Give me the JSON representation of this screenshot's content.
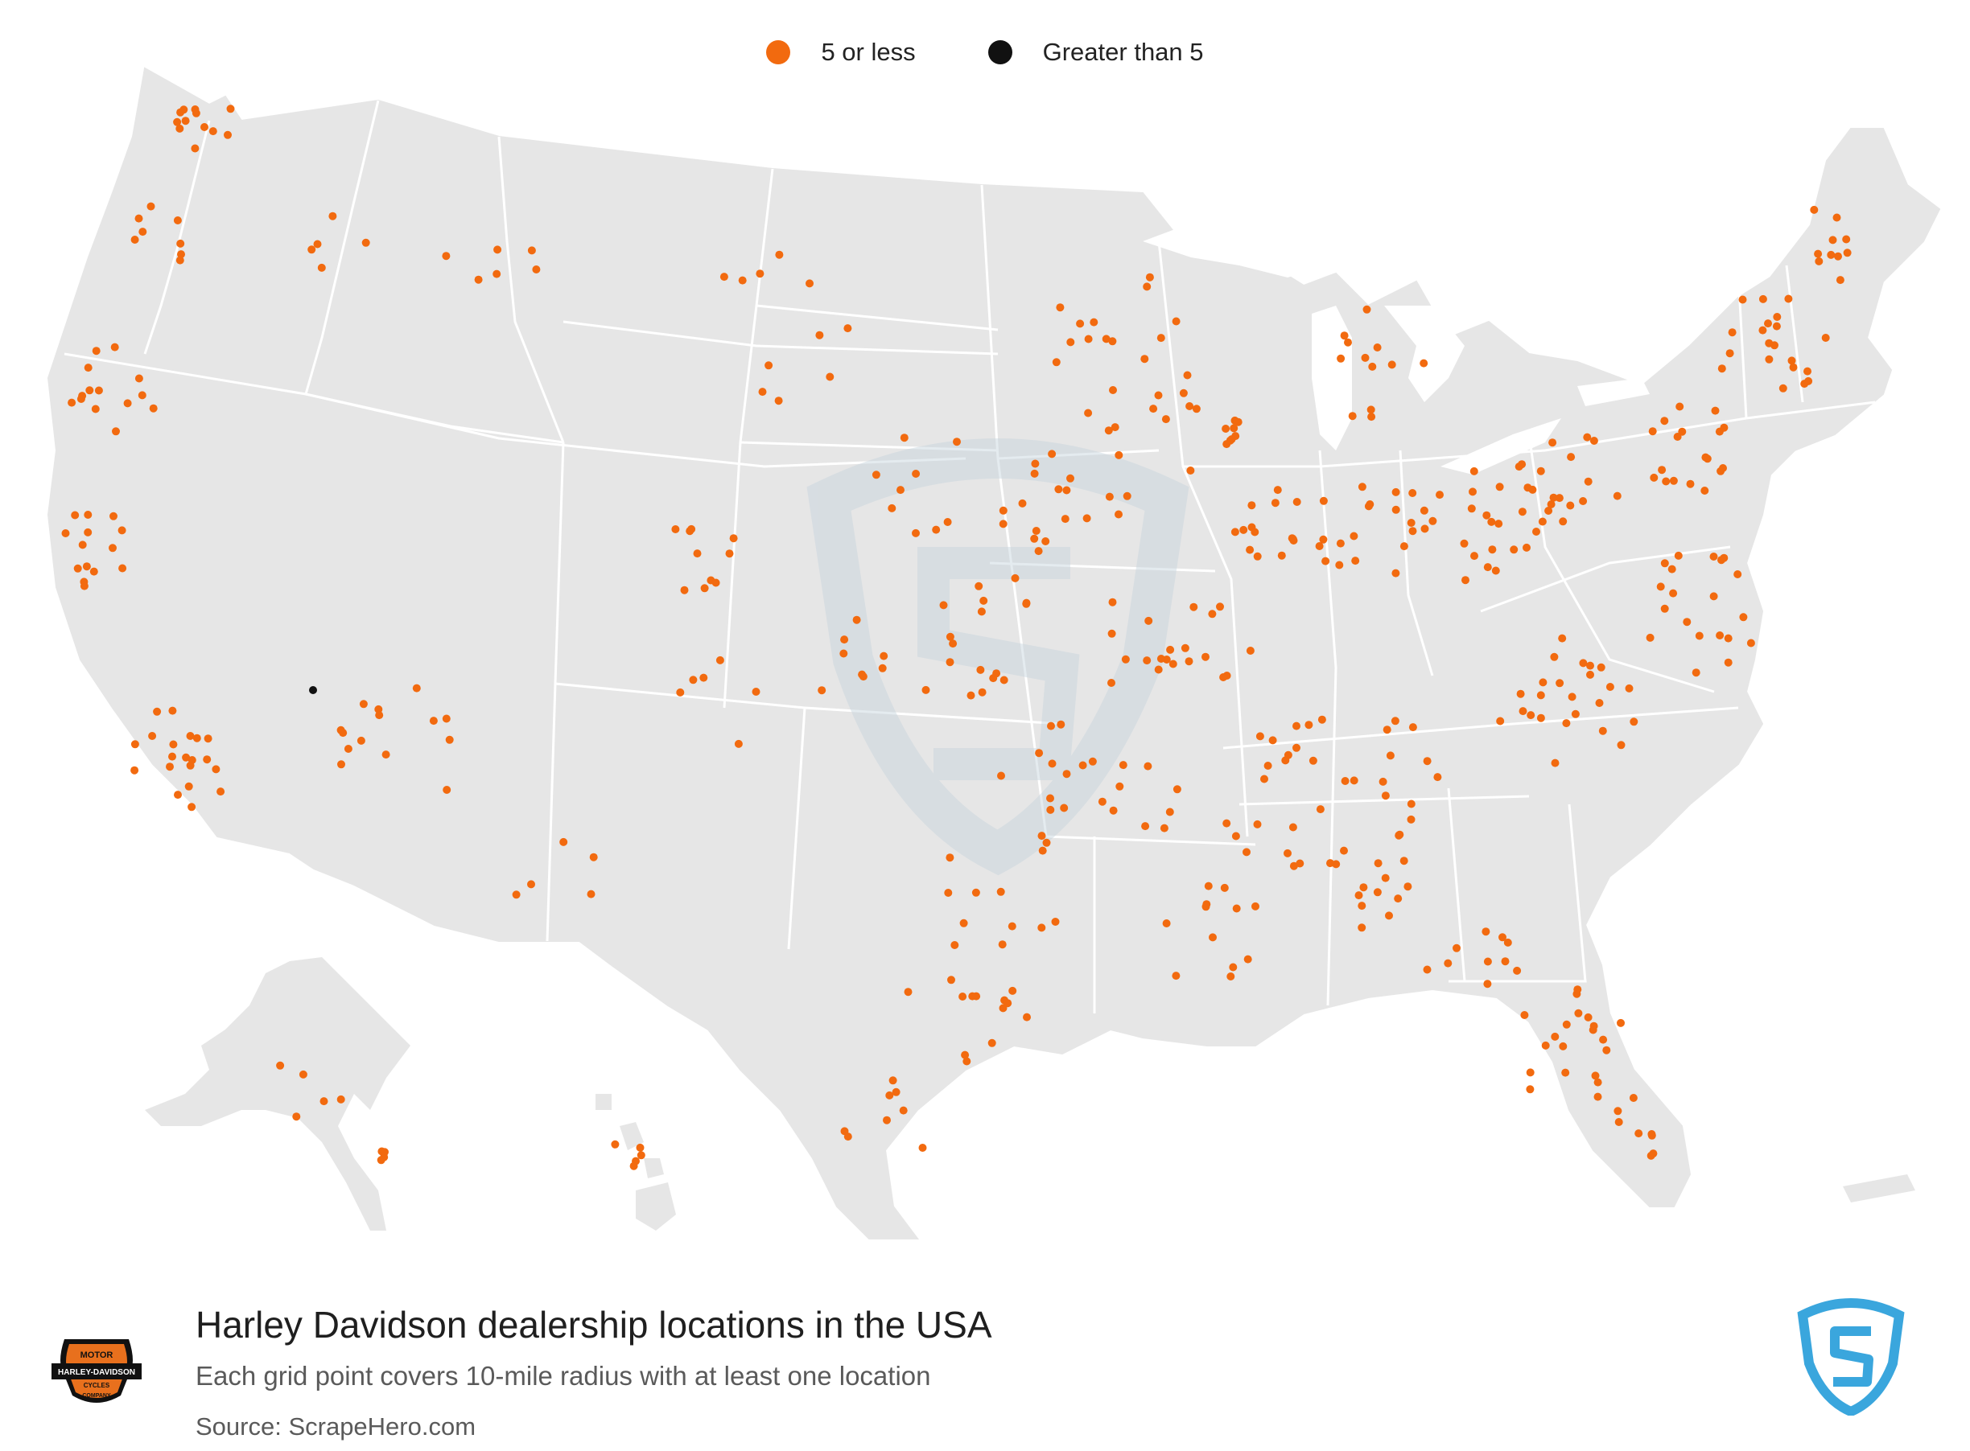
{
  "legend": {
    "items": [
      {
        "label": "5 or less",
        "color": "#f26a0f"
      },
      {
        "label": "Greater than 5",
        "color": "#111111"
      }
    ]
  },
  "map": {
    "land_color": "#e6e6e6",
    "border_color": "#ffffff",
    "watermark_color": "#c5d3dd"
  },
  "footer": {
    "title": "Harley Davidson dealership locations in the USA",
    "subtitle": "Each grid point covers 10-mile radius with at least one location",
    "source": "Source: ScrapeHero.com",
    "company_logo_text": [
      "MOTOR",
      "HARLEY-DAVIDSON",
      "CYCLES",
      "COMPANY"
    ],
    "brand_logo_icon": "scrapehero-shield-icon",
    "brand_color": "#3aa6dd"
  }
}
